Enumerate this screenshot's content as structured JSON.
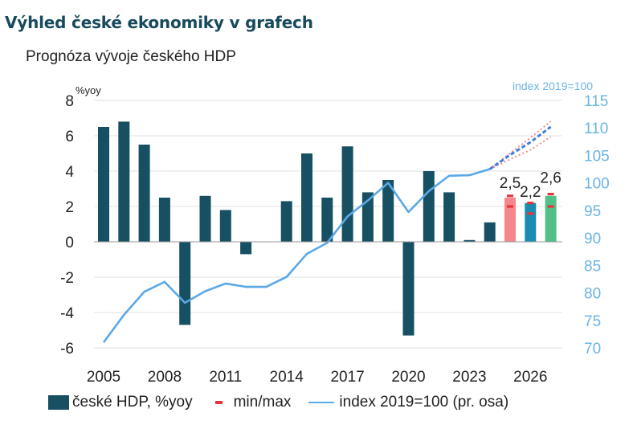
{
  "header": {
    "headline": "Výhled české ekonomiky v grafech",
    "chart_title": "Prognóza vývoje českého HDP"
  },
  "legend": {
    "gdp_bars": "české HDP, %yoy",
    "minmax": "min/max",
    "index_line": "index 2019=100 (pr. osa)"
  },
  "colors": {
    "bars": "#174f63",
    "forecast_2025": "#f4868c",
    "forecast_2026": "#1a8cb0",
    "forecast_2027": "#52c086",
    "minmax": "#e8343a",
    "index_line": "#5aa8e6",
    "index_forecast_dash": "#3e7ee0",
    "scenario_high": "#f08a94",
    "right_axis_text": "#6ab4e6",
    "grid": "#e2e2e2"
  },
  "chart_data": {
    "type": "bar",
    "left_axis": {
      "label": "%yoy",
      "min": -6,
      "max": 8,
      "ticks": [
        "8",
        "6",
        "4",
        "2",
        "0",
        "-2",
        "-4",
        "-6"
      ]
    },
    "right_axis": {
      "label": "index 2019=100",
      "min": 70,
      "max": 115,
      "ticks": [
        "115",
        "110",
        "105",
        "100",
        "95",
        "90",
        "85",
        "80",
        "75",
        "70"
      ]
    },
    "x_tick_labels": [
      "2005",
      "2008",
      "2011",
      "2014",
      "2017",
      "2020",
      "2023",
      "2026"
    ],
    "years": [
      2005,
      2006,
      2007,
      2008,
      2009,
      2010,
      2011,
      2012,
      2013,
      2014,
      2015,
      2016,
      2017,
      2018,
      2019,
      2020,
      2021,
      2022,
      2023,
      2024,
      2025,
      2026,
      2027
    ],
    "gdp_yoy": [
      6.5,
      6.8,
      5.5,
      2.5,
      -4.7,
      2.6,
      1.8,
      -0.7,
      0.0,
      2.3,
      5.0,
      2.5,
      5.4,
      2.8,
      3.5,
      -5.3,
      4.0,
      2.8,
      0.1,
      1.1,
      2.5,
      2.2,
      2.6
    ],
    "forecast_years": [
      2025,
      2026,
      2027
    ],
    "forecast_labels": [
      "2,5",
      "2,2",
      "2,6"
    ],
    "minmax": [
      {
        "year": 2025,
        "min": 2.0,
        "max": 2.6
      },
      {
        "year": 2026,
        "min": 1.6,
        "max": 2.2
      },
      {
        "year": 2027,
        "min": 2.0,
        "max": 2.7
      }
    ],
    "index_2019_100": [
      71,
      76,
      80.2,
      82,
      78.2,
      80.3,
      81.7,
      81.1,
      81.1,
      82.9,
      87.1,
      89.1,
      93.9,
      96.8,
      100,
      94.7,
      98.5,
      101.3,
      101.4,
      102.5
    ],
    "index_forecast": {
      "years": [
        2024,
        2025,
        2026,
        2027
      ],
      "base": [
        102.5,
        105.1,
        107.4,
        110.2
      ],
      "high": [
        102.5,
        105.4,
        108.2,
        111.2
      ],
      "low": [
        102.5,
        104.3,
        106.0,
        108.4
      ]
    }
  }
}
